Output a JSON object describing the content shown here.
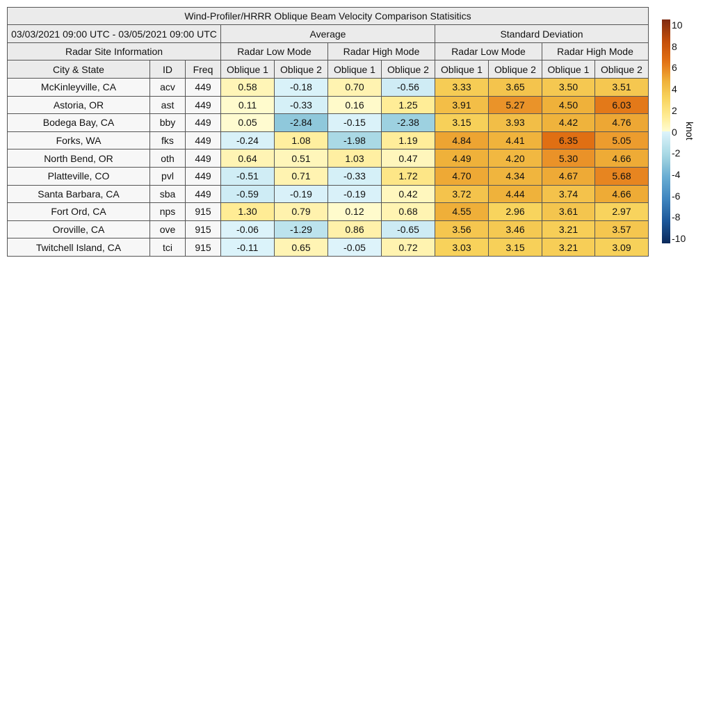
{
  "chart_data": {
    "type": "table",
    "title": "Wind-Profiler/HRRR Oblique Beam Velocity Comparison Statisitics",
    "date_range": "03/03/2021 09:00 UTC - 03/05/2021 09:00 UTC",
    "group_headers": {
      "info": "Radar Site Information",
      "average": "Average",
      "std": "Standard Deviation"
    },
    "mode_headers": [
      "Radar Low Mode",
      "Radar High Mode",
      "Radar Low Mode",
      "Radar High Mode"
    ],
    "column_headers": [
      "City & State",
      "ID",
      "Freq",
      "Oblique 1",
      "Oblique 2",
      "Oblique 1",
      "Oblique 2",
      "Oblique 1",
      "Oblique 2",
      "Oblique 1",
      "Oblique 2"
    ],
    "rows": [
      {
        "city": "McKinleyville, CA",
        "id": "acv",
        "freq": "449",
        "values": [
          "0.58",
          "-0.18",
          "0.70",
          "-0.56",
          "3.33",
          "3.65",
          "3.50",
          "3.51"
        ]
      },
      {
        "city": "Astoria, OR",
        "id": "ast",
        "freq": "449",
        "values": [
          "0.11",
          "-0.33",
          "0.16",
          "1.25",
          "3.91",
          "5.27",
          "4.50",
          "6.03"
        ]
      },
      {
        "city": "Bodega Bay, CA",
        "id": "bby",
        "freq": "449",
        "values": [
          "0.05",
          "-2.84",
          "-0.15",
          "-2.38",
          "3.15",
          "3.93",
          "4.42",
          "4.76"
        ]
      },
      {
        "city": "Forks, WA",
        "id": "fks",
        "freq": "449",
        "values": [
          "-0.24",
          "1.08",
          "-1.98",
          "1.19",
          "4.84",
          "4.41",
          "6.35",
          "5.05"
        ]
      },
      {
        "city": "North Bend, OR",
        "id": "oth",
        "freq": "449",
        "values": [
          "0.64",
          "0.51",
          "1.03",
          "0.47",
          "4.49",
          "4.20",
          "5.30",
          "4.66"
        ]
      },
      {
        "city": "Platteville, CO",
        "id": "pvl",
        "freq": "449",
        "values": [
          "-0.51",
          "0.71",
          "-0.33",
          "1.72",
          "4.70",
          "4.34",
          "4.67",
          "5.68"
        ]
      },
      {
        "city": "Santa Barbara, CA",
        "id": "sba",
        "freq": "449",
        "values": [
          "-0.59",
          "-0.19",
          "-0.19",
          "0.42",
          "3.72",
          "4.44",
          "3.74",
          "4.66"
        ]
      },
      {
        "city": "Fort Ord, CA",
        "id": "nps",
        "freq": "915",
        "values": [
          "1.30",
          "0.79",
          "0.12",
          "0.68",
          "4.55",
          "2.96",
          "3.61",
          "2.97"
        ]
      },
      {
        "city": "Oroville, CA",
        "id": "ove",
        "freq": "915",
        "values": [
          "-0.06",
          "-1.29",
          "0.86",
          "-0.65",
          "3.56",
          "3.46",
          "3.21",
          "3.57"
        ]
      },
      {
        "city": "Twitchell Island, CA",
        "id": "tci",
        "freq": "915",
        "values": [
          "-0.11",
          "0.65",
          "-0.05",
          "0.72",
          "3.03",
          "3.15",
          "3.21",
          "3.09"
        ]
      }
    ],
    "colorbar": {
      "label": "knot",
      "range": [
        -10,
        10
      ],
      "ticks": [
        "10",
        "8",
        "6",
        "4",
        "2",
        "0",
        "-2",
        "-4",
        "-6",
        "-8",
        "-10"
      ],
      "colormap": "blue (negative) to yellow/orange/brown (positive)"
    }
  }
}
